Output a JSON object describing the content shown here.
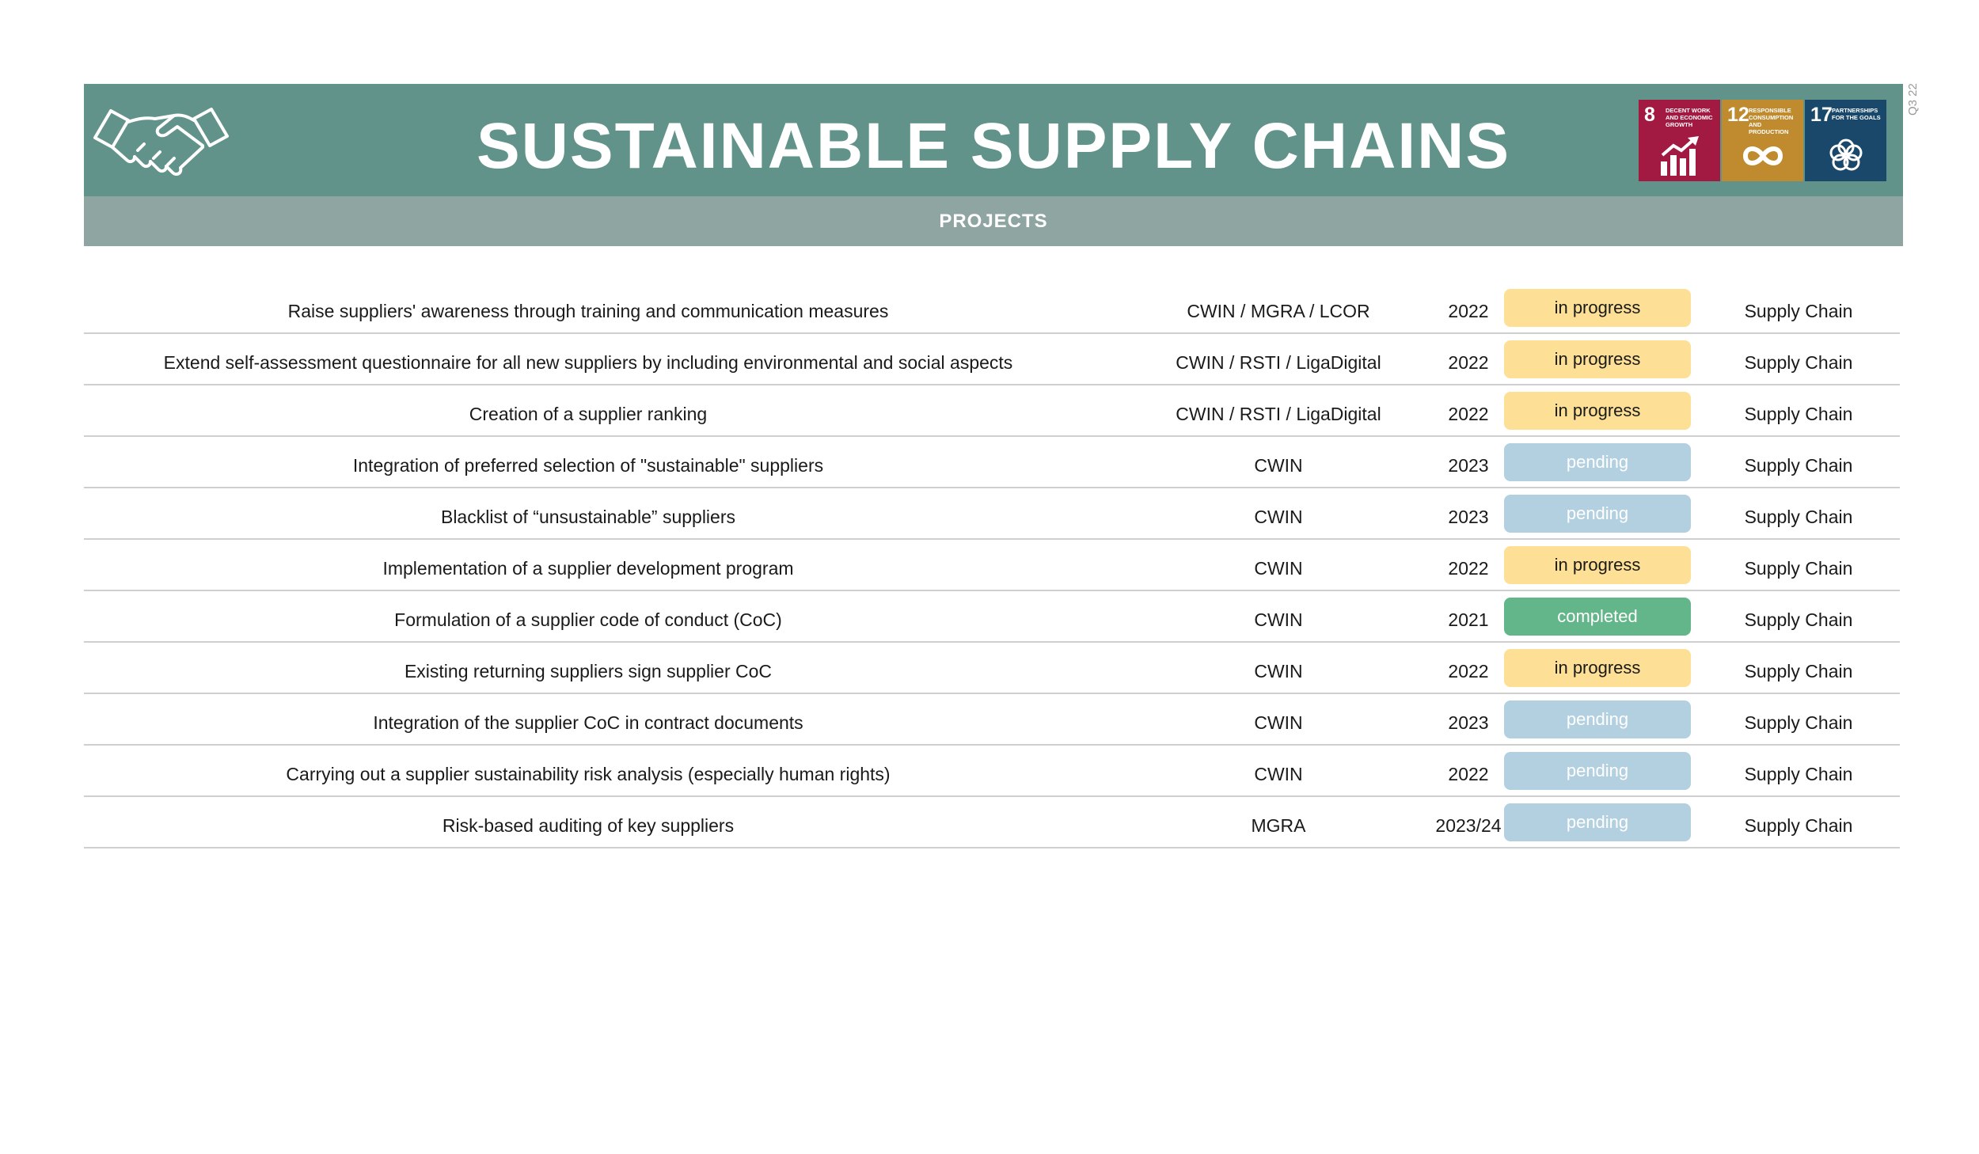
{
  "header": {
    "title": "SUSTAINABLE SUPPLY CHAINS",
    "subtitle": "PROJECTS",
    "version": "Q3 22",
    "icon": "handshake-icon",
    "color": "#62938a"
  },
  "sdgs": [
    {
      "number": "8",
      "label": "Decent work and economic growth",
      "color": "#a21942",
      "icon": "growth-chart-icon"
    },
    {
      "number": "12",
      "label": "Responsible consumption and production",
      "color": "#bf8b2e",
      "icon": "infinity-icon"
    },
    {
      "number": "17",
      "label": "Partnerships for the goals",
      "color": "#19486a",
      "icon": "flower-ring-icon"
    }
  ],
  "status_colors": {
    "in progress": {
      "bg": "#fddf96",
      "fg": "#1a1a1a"
    },
    "pending": {
      "bg": "#b3d0e0",
      "fg": "#ffffff"
    },
    "completed": {
      "bg": "#63b58a",
      "fg": "#ffffff"
    }
  },
  "projects": [
    {
      "project": "Raise suppliers' awareness through training and communication measures",
      "responsible": "CWIN / MGRA / LCOR",
      "year": "2022",
      "status": "in progress",
      "department": "Supply Chain"
    },
    {
      "project": "Extend self-assessment questionnaire for all new suppliers by including environmental and social aspects",
      "responsible": "CWIN / RSTI / LigaDigital",
      "year": "2022",
      "status": "in progress",
      "department": "Supply Chain"
    },
    {
      "project": "Creation of a supplier ranking",
      "responsible": "CWIN / RSTI / LigaDigital",
      "year": "2022",
      "status": "in progress",
      "department": "Supply Chain"
    },
    {
      "project": "Integration of preferred selection of \"sustainable\" suppliers",
      "responsible": "CWIN",
      "year": "2023",
      "status": "pending",
      "department": "Supply Chain"
    },
    {
      "project": "Blacklist of “unsustainable” suppliers",
      "responsible": "CWIN",
      "year": "2023",
      "status": "pending",
      "department": "Supply Chain"
    },
    {
      "project": "Implementation of a supplier development program",
      "responsible": "CWIN",
      "year": "2022",
      "status": "in progress",
      "department": "Supply Chain"
    },
    {
      "project": "Formulation of a supplier code of conduct (CoC)",
      "responsible": "CWIN",
      "year": "2021",
      "status": "completed",
      "department": "Supply Chain"
    },
    {
      "project": "Existing returning suppliers sign supplier CoC",
      "responsible": "CWIN",
      "year": "2022",
      "status": "in progress",
      "department": "Supply Chain"
    },
    {
      "project": "Integration of the supplier CoC in contract documents",
      "responsible": "CWIN",
      "year": "2023",
      "status": "pending",
      "department": "Supply Chain"
    },
    {
      "project": "Carrying out a supplier sustainability risk analysis (especially human rights)",
      "responsible": "CWIN",
      "year": "2022",
      "status": "pending",
      "department": "Supply Chain"
    },
    {
      "project": "Risk-based auditing of key suppliers",
      "responsible": "MGRA",
      "year": "2023/24",
      "status": "pending",
      "department": "Supply Chain"
    }
  ]
}
